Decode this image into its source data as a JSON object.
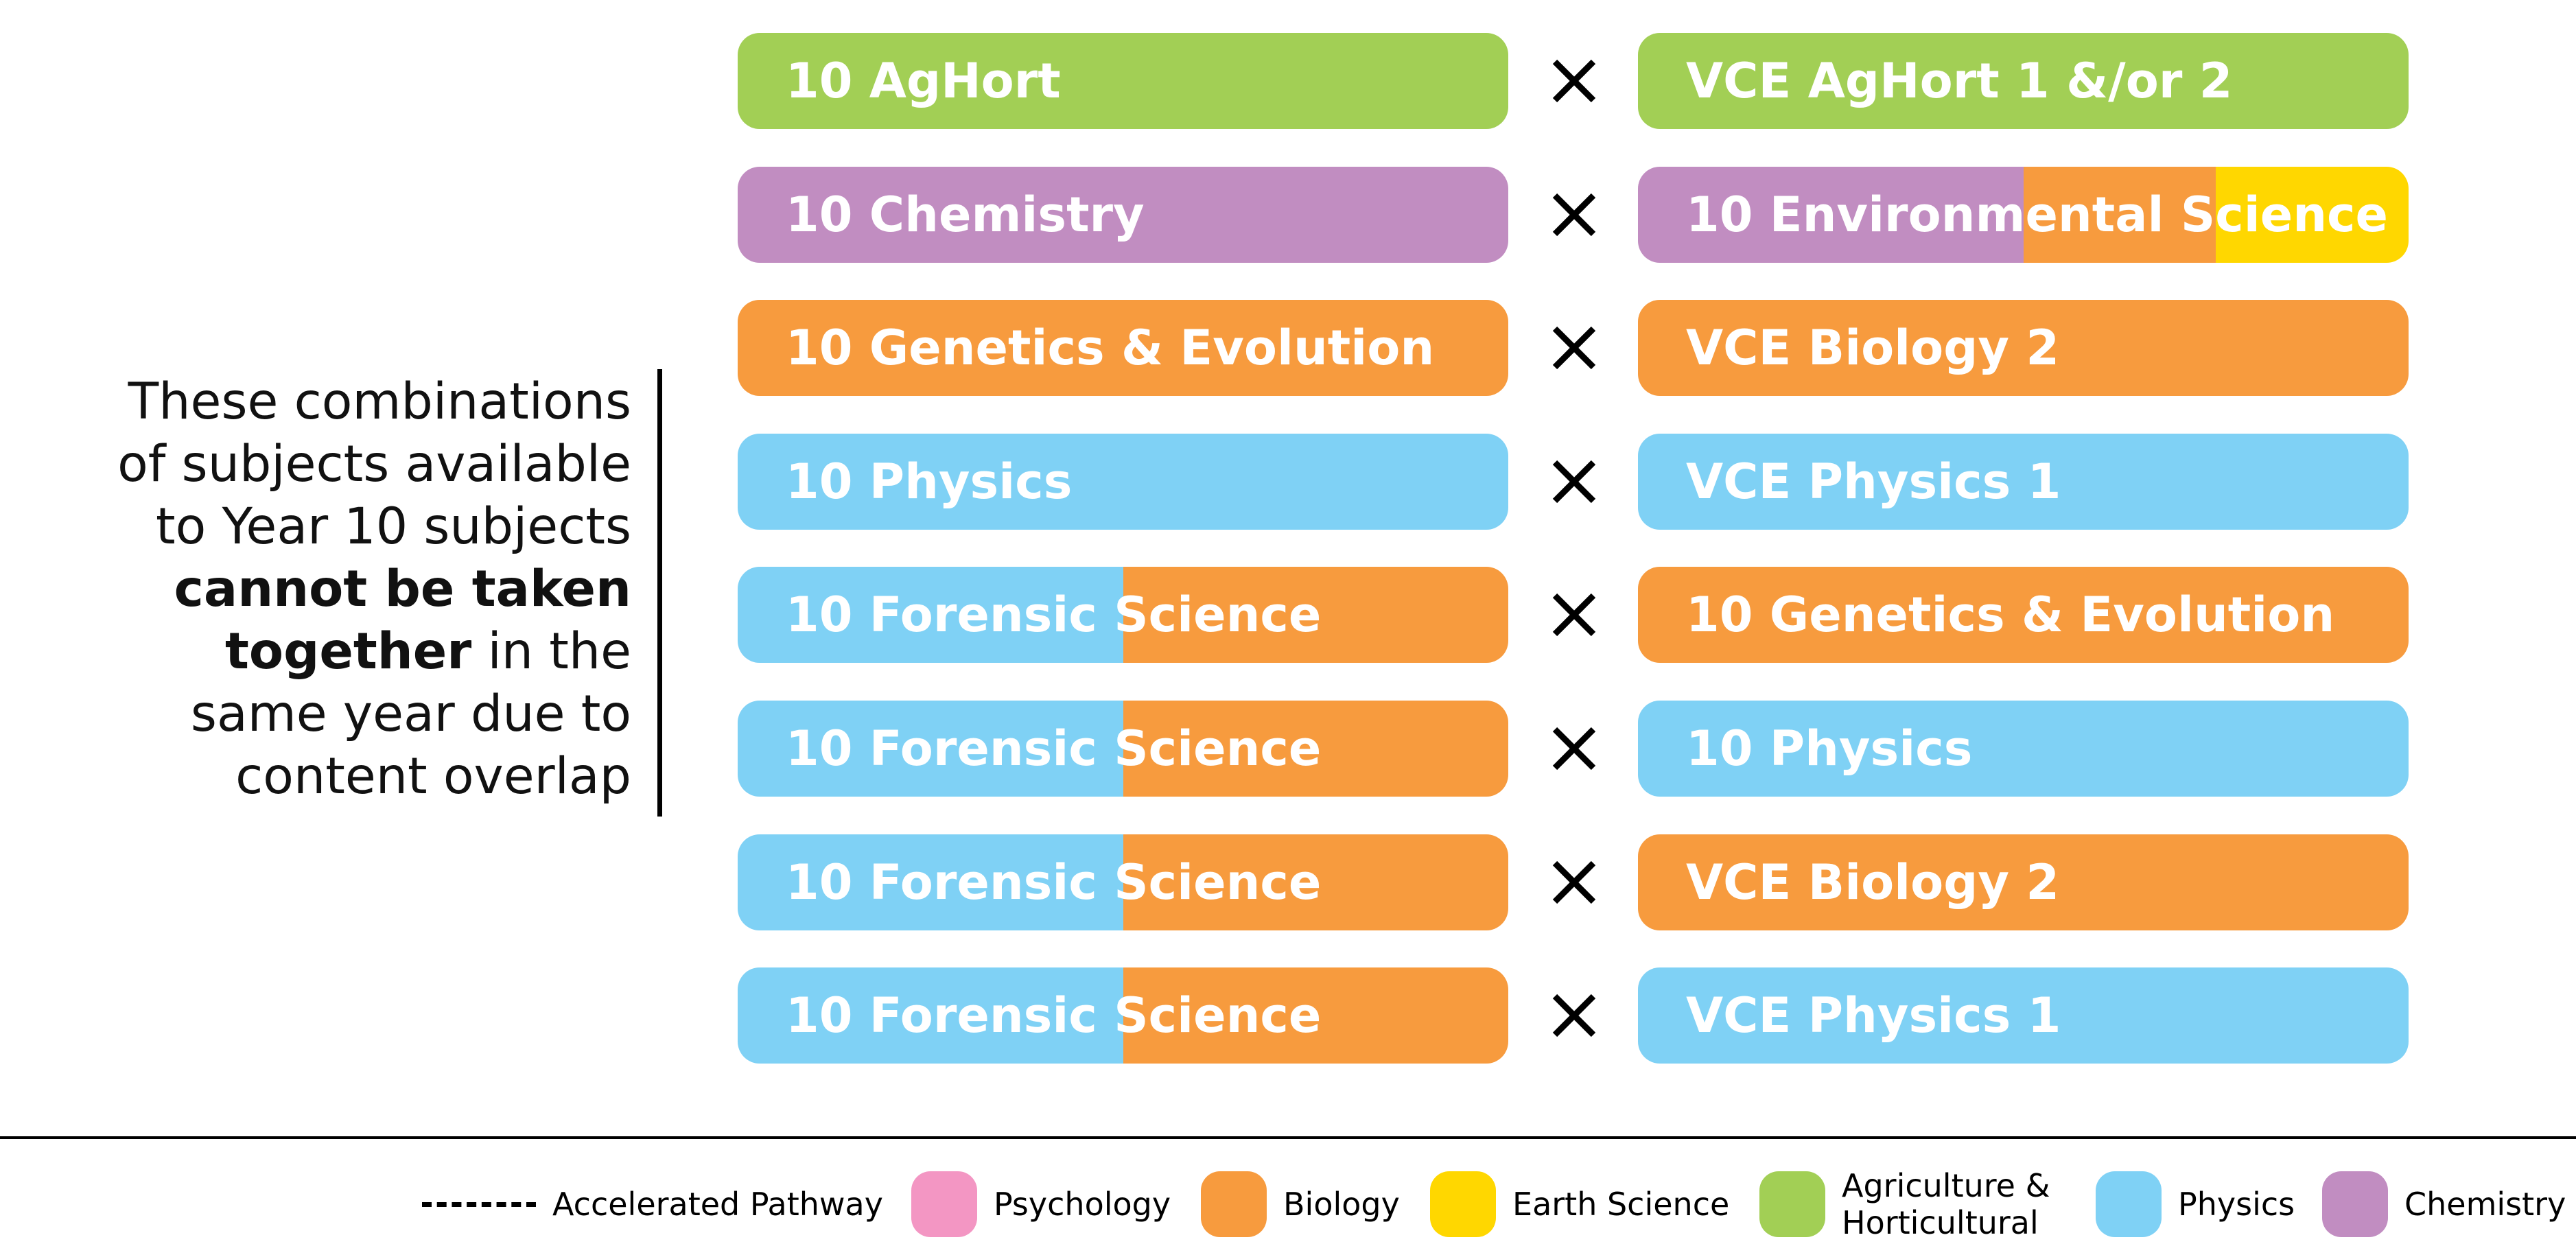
{
  "note": {
    "line1": "These combinations",
    "line2": "of subjects available",
    "line3": "to Year 10 subjects",
    "bold1": "cannot be taken",
    "bold2": "together",
    "line5_rest": " in the",
    "line6": "same year due to",
    "line7": "content overlap"
  },
  "colors": {
    "psychology": "#F396C3",
    "biology": "#F79B3E",
    "earth_science": "#FFD700",
    "agriculture": "#A2CF55",
    "physics": "#7FD1F5",
    "chemistry": "#C18DC1"
  },
  "pairs": [
    {
      "left": {
        "label": "10 AgHort",
        "segments": [
          {
            "area": "agriculture",
            "fraction": 1.0
          }
        ]
      },
      "right": {
        "label": "VCE AgHort 1 &/or 2",
        "segments": [
          {
            "area": "agriculture",
            "fraction": 1.0
          }
        ]
      }
    },
    {
      "left": {
        "label": "10 Chemistry",
        "segments": [
          {
            "area": "chemistry",
            "fraction": 1.0
          }
        ]
      },
      "right": {
        "label": "10 Environmental Science",
        "segments": [
          {
            "area": "chemistry",
            "fraction": 0.5
          },
          {
            "area": "biology",
            "fraction": 0.25
          },
          {
            "area": "earth_science",
            "fraction": 0.25
          }
        ]
      }
    },
    {
      "left": {
        "label": "10 Genetics & Evolution",
        "segments": [
          {
            "area": "biology",
            "fraction": 1.0
          }
        ]
      },
      "right": {
        "label": "VCE Biology 2",
        "segments": [
          {
            "area": "biology",
            "fraction": 1.0
          }
        ]
      }
    },
    {
      "left": {
        "label": "10 Physics",
        "segments": [
          {
            "area": "physics",
            "fraction": 1.0
          }
        ]
      },
      "right": {
        "label": "VCE Physics 1",
        "segments": [
          {
            "area": "physics",
            "fraction": 1.0
          }
        ]
      }
    },
    {
      "left": {
        "label": "10 Forensic Science",
        "segments": [
          {
            "area": "physics",
            "fraction": 0.5
          },
          {
            "area": "biology",
            "fraction": 0.5
          }
        ]
      },
      "right": {
        "label": "10 Genetics & Evolution",
        "segments": [
          {
            "area": "biology",
            "fraction": 1.0
          }
        ]
      }
    },
    {
      "left": {
        "label": "10 Forensic Science",
        "segments": [
          {
            "area": "physics",
            "fraction": 0.5
          },
          {
            "area": "biology",
            "fraction": 0.5
          }
        ]
      },
      "right": {
        "label": "10 Physics",
        "segments": [
          {
            "area": "physics",
            "fraction": 1.0
          }
        ]
      }
    },
    {
      "left": {
        "label": "10 Forensic Science",
        "segments": [
          {
            "area": "physics",
            "fraction": 0.5
          },
          {
            "area": "biology",
            "fraction": 0.5
          }
        ]
      },
      "right": {
        "label": "VCE Biology 2",
        "segments": [
          {
            "area": "biology",
            "fraction": 1.0
          }
        ]
      }
    },
    {
      "left": {
        "label": "10 Forensic Science",
        "segments": [
          {
            "area": "physics",
            "fraction": 0.5
          },
          {
            "area": "biology",
            "fraction": 0.5
          }
        ]
      },
      "right": {
        "label": "VCE Physics 1",
        "segments": [
          {
            "area": "physics",
            "fraction": 1.0
          }
        ]
      }
    }
  ],
  "legend": {
    "accelerated": "Accelerated Pathway",
    "psychology": "Psychology",
    "biology": "Biology",
    "earth_science": "Earth Science",
    "agriculture": "Agriculture & Horticultural",
    "physics": "Physics",
    "chemistry": "Chemistry"
  },
  "icons": {
    "separator": "times-icon"
  }
}
